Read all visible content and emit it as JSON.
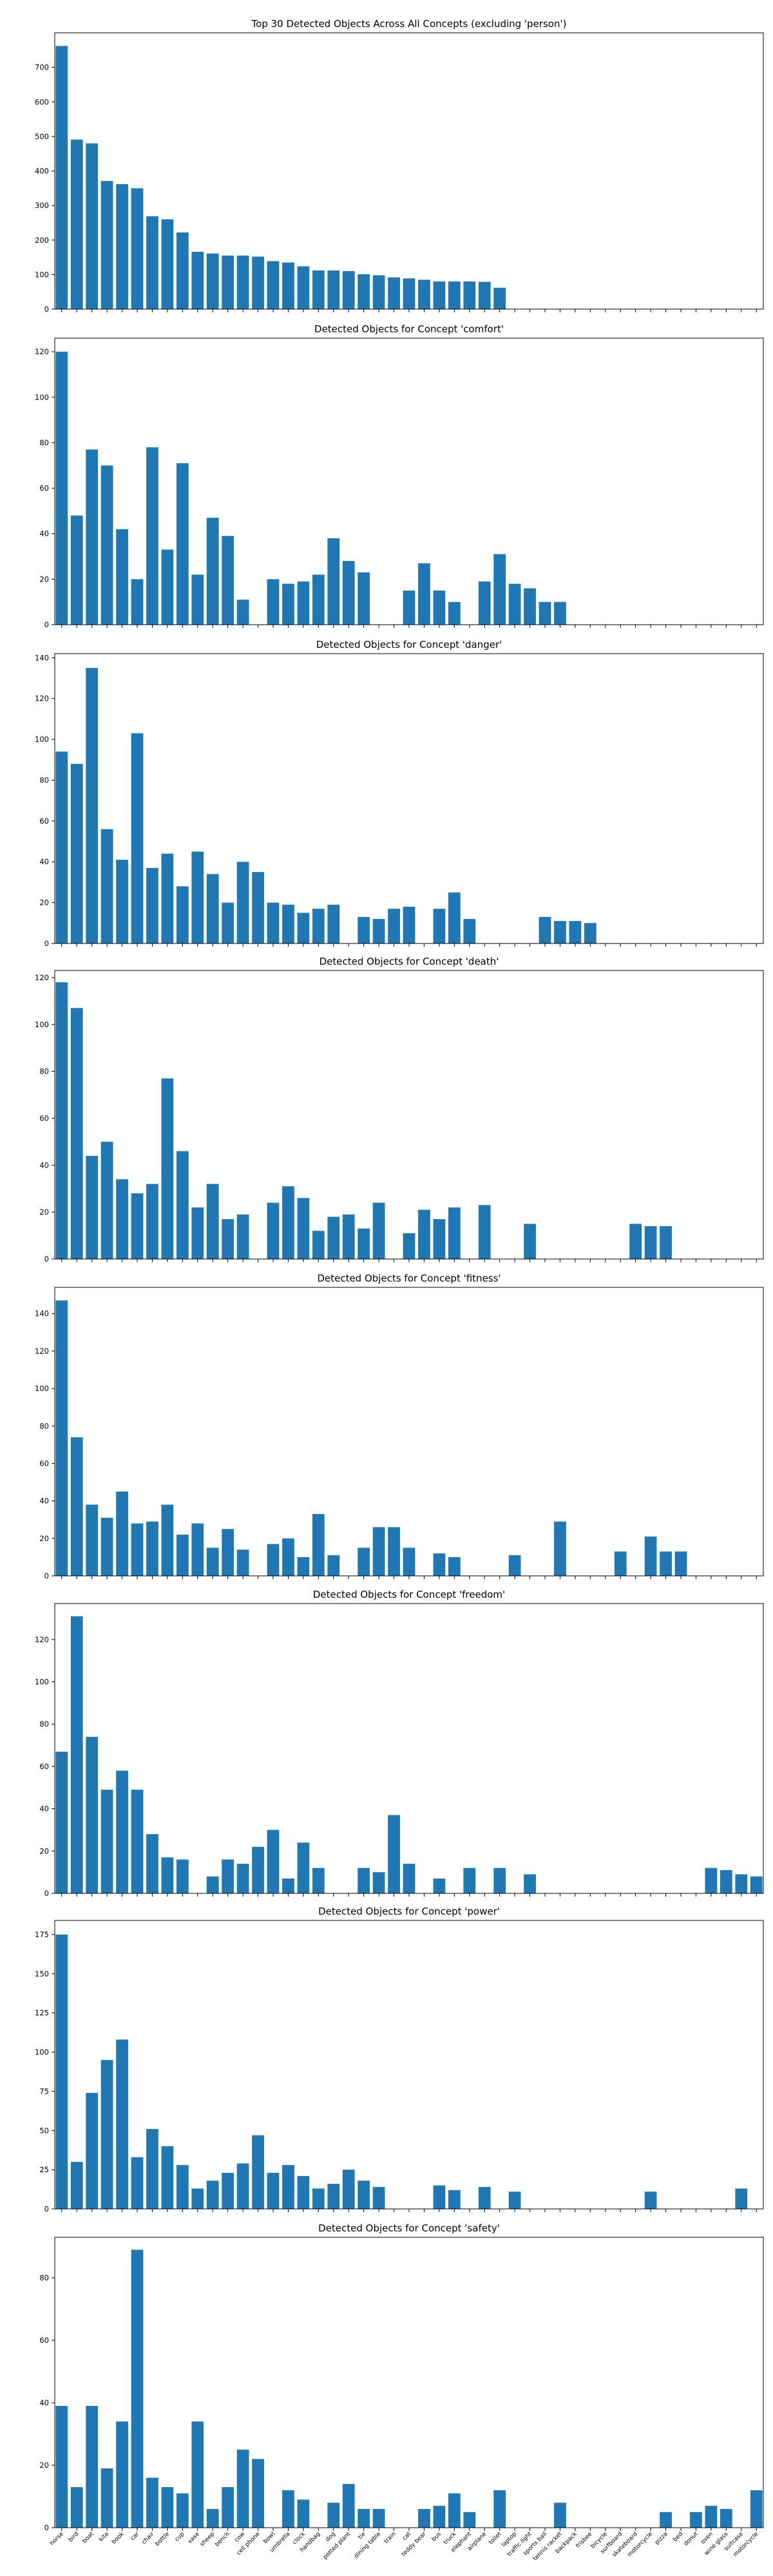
{
  "categories": [
    "horse",
    "bird",
    "boat",
    "kite",
    "book",
    "car",
    "chair",
    "bottle",
    "cup",
    "vase",
    "sheep",
    "bench",
    "cow",
    "cell phone",
    "bowl",
    "umbrella",
    "clock",
    "handbag",
    "dog",
    "potted plant",
    "tie",
    "dining table",
    "train",
    "cat",
    "teddy bear",
    "bus",
    "truck",
    "elephant",
    "airplane",
    "toilet",
    "laptop",
    "traffic light",
    "sports ball",
    "tennis racket",
    "backpack",
    "frisbee",
    "bicycle",
    "surfboard",
    "skateboard",
    "motorcycle",
    "pizza",
    "bed",
    "donut",
    "oven",
    "wine glass",
    "suitcase",
    "motorcycle"
  ],
  "bar_color": "#1f77b4",
  "chart_data": [
    {
      "type": "bar",
      "title": "Top 30 Detected Objects Across All Concepts (excluding 'person')",
      "ylim": [
        0,
        800
      ],
      "yticks": [
        0,
        100,
        200,
        300,
        400,
        500,
        600,
        700
      ],
      "values": [
        762,
        491,
        480,
        371,
        362,
        350,
        269,
        260,
        222,
        166,
        161,
        155,
        155,
        152,
        139,
        135,
        124,
        112,
        112,
        110,
        101,
        98,
        92,
        89,
        85,
        80,
        80,
        80,
        79,
        62,
        null,
        null,
        null,
        null,
        null,
        null,
        null,
        null,
        null,
        null,
        null,
        null,
        null,
        null,
        null,
        null,
        null
      ]
    },
    {
      "type": "bar",
      "title": "Detected Objects for Concept 'comfort'",
      "ylim": [
        0,
        126
      ],
      "yticks": [
        0,
        20,
        40,
        60,
        80,
        100,
        120
      ],
      "values": [
        120,
        48,
        77,
        70,
        42,
        20,
        78,
        33,
        71,
        22,
        47,
        39,
        11,
        null,
        20,
        18,
        19,
        22,
        38,
        28,
        23,
        null,
        null,
        15,
        27,
        15,
        10,
        null,
        19,
        31,
        18,
        16,
        10,
        10,
        null,
        null,
        null,
        null,
        null,
        null,
        null,
        null,
        null,
        null,
        null,
        null,
        null
      ]
    },
    {
      "type": "bar",
      "title": "Detected Objects for Concept 'danger'",
      "ylim": [
        0,
        142
      ],
      "yticks": [
        0,
        20,
        40,
        60,
        80,
        100,
        120,
        140
      ],
      "values": [
        94,
        88,
        135,
        56,
        41,
        103,
        37,
        44,
        28,
        45,
        34,
        20,
        40,
        35,
        20,
        19,
        15,
        17,
        19,
        null,
        13,
        12,
        17,
        18,
        null,
        17,
        25,
        12,
        null,
        null,
        null,
        null,
        13,
        11,
        11,
        10,
        null,
        null,
        null,
        null,
        null,
        null,
        null,
        null,
        null,
        null,
        null
      ]
    },
    {
      "type": "bar",
      "title": "Detected Objects for Concept 'death'",
      "ylim": [
        0,
        123
      ],
      "yticks": [
        0,
        20,
        40,
        60,
        80,
        100,
        120
      ],
      "values": [
        118,
        107,
        44,
        50,
        34,
        28,
        32,
        77,
        46,
        22,
        32,
        17,
        19,
        null,
        24,
        31,
        26,
        12,
        18,
        19,
        13,
        24,
        null,
        11,
        21,
        17,
        22,
        null,
        23,
        null,
        null,
        15,
        null,
        null,
        null,
        null,
        null,
        null,
        15,
        14,
        14,
        null,
        null,
        null,
        null,
        null,
        null
      ]
    },
    {
      "type": "bar",
      "title": "Detected Objects for Concept 'fitness'",
      "ylim": [
        0,
        154
      ],
      "yticks": [
        0,
        20,
        40,
        60,
        80,
        100,
        120,
        140
      ],
      "values": [
        147,
        74,
        38,
        31,
        45,
        28,
        29,
        38,
        22,
        28,
        15,
        25,
        14,
        null,
        17,
        20,
        10,
        33,
        11,
        null,
        15,
        26,
        26,
        15,
        null,
        12,
        10,
        null,
        null,
        null,
        11,
        null,
        null,
        29,
        null,
        null,
        null,
        13,
        null,
        21,
        13,
        13,
        null,
        null,
        null,
        null,
        null
      ]
    },
    {
      "type": "bar",
      "title": "Detected Objects for Concept 'freedom'",
      "ylim": [
        0,
        137
      ],
      "yticks": [
        0,
        20,
        40,
        60,
        80,
        100,
        120
      ],
      "values": [
        67,
        131,
        74,
        49,
        58,
        49,
        28,
        17,
        16,
        null,
        8,
        16,
        14,
        22,
        30,
        7,
        24,
        12,
        null,
        null,
        12,
        10,
        37,
        14,
        null,
        7,
        null,
        12,
        null,
        12,
        null,
        9,
        null,
        null,
        null,
        null,
        null,
        null,
        null,
        null,
        null,
        null,
        null,
        12,
        11,
        9,
        8
      ]
    },
    {
      "type": "bar",
      "title": "Detected Objects for Concept 'power'",
      "ylim": [
        0,
        184
      ],
      "yticks": [
        0,
        25,
        50,
        75,
        100,
        125,
        150,
        175
      ],
      "values": [
        175,
        30,
        74,
        95,
        108,
        33,
        51,
        40,
        28,
        13,
        18,
        23,
        29,
        47,
        23,
        28,
        21,
        13,
        16,
        25,
        18,
        14,
        null,
        null,
        null,
        15,
        12,
        null,
        14,
        null,
        11,
        null,
        null,
        null,
        null,
        null,
        null,
        null,
        null,
        11,
        null,
        null,
        null,
        null,
        null,
        13,
        null
      ]
    },
    {
      "type": "bar",
      "title": "Detected Objects for Concept 'safety'",
      "ylim": [
        0,
        93
      ],
      "yticks": [
        0,
        20,
        40,
        60,
        80
      ],
      "values": [
        39,
        13,
        39,
        19,
        34,
        89,
        16,
        13,
        11,
        34,
        6,
        13,
        25,
        22,
        null,
        12,
        9,
        null,
        8,
        14,
        6,
        6,
        null,
        null,
        6,
        7,
        11,
        5,
        null,
        12,
        null,
        null,
        null,
        8,
        null,
        null,
        null,
        null,
        null,
        null,
        5,
        null,
        5,
        7,
        6,
        null,
        12
      ]
    }
  ]
}
